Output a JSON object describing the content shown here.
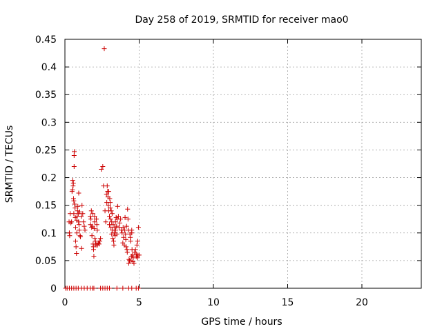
{
  "chart_data": {
    "type": "scatter",
    "title": "Day 258 of 2019, SRMTID for receiver mao0",
    "xlabel": "GPS time / hours",
    "ylabel": "SRMTID / TECUs",
    "xlim": [
      0,
      24
    ],
    "ylim": [
      0,
      0.45
    ],
    "xticks": [
      0,
      5,
      10,
      15,
      20
    ],
    "xtick_labels": [
      "0",
      "5",
      "10",
      "15",
      "20"
    ],
    "yticks": [
      0,
      0.05,
      0.1,
      0.15,
      0.2,
      0.25,
      0.3,
      0.35,
      0.4,
      0.45
    ],
    "ytick_labels": [
      "0",
      "0.05",
      "0.1",
      "0.15",
      "0.2",
      "0.25",
      "0.3",
      "0.35",
      "0.4",
      "0.45"
    ],
    "grid": true,
    "marker": "+",
    "color": "#cc0000",
    "series": [
      {
        "points": [
          [
            0.05,
            0
          ],
          [
            0.15,
            0
          ],
          [
            0.3,
            0
          ],
          [
            0.45,
            0
          ],
          [
            0.6,
            0
          ],
          [
            0.75,
            0
          ],
          [
            0.9,
            0
          ],
          [
            1.1,
            0
          ],
          [
            1.3,
            0
          ],
          [
            1.5,
            0
          ],
          [
            1.7,
            0
          ],
          [
            1.85,
            0
          ],
          [
            1.95,
            0
          ],
          [
            2.4,
            0
          ],
          [
            2.55,
            0
          ],
          [
            2.7,
            0
          ],
          [
            2.85,
            0
          ],
          [
            3.0,
            0
          ],
          [
            3.5,
            0
          ],
          [
            3.9,
            0
          ],
          [
            4.3,
            0
          ],
          [
            4.5,
            0
          ],
          [
            4.8,
            0
          ],
          [
            4.95,
            0
          ],
          [
            0.28,
            0.12
          ],
          [
            0.3,
            0.1
          ],
          [
            0.32,
            0.095
          ],
          [
            0.35,
            0.135
          ],
          [
            0.4,
            0.118
          ],
          [
            0.45,
            0.12
          ],
          [
            0.48,
            0.175
          ],
          [
            0.5,
            0.178
          ],
          [
            0.52,
            0.195
          ],
          [
            0.55,
            0.185
          ],
          [
            0.57,
            0.19
          ],
          [
            0.58,
            0.162
          ],
          [
            0.6,
            0.158
          ],
          [
            0.6,
            0.135
          ],
          [
            0.62,
            0.22
          ],
          [
            0.62,
            0.24
          ],
          [
            0.63,
            0.247
          ],
          [
            0.65,
            0.152
          ],
          [
            0.68,
            0.145
          ],
          [
            0.7,
            0.128
          ],
          [
            0.72,
            0.11
          ],
          [
            0.72,
            0.085
          ],
          [
            0.75,
            0.075
          ],
          [
            0.78,
            0.063
          ],
          [
            0.8,
            0.1
          ],
          [
            0.8,
            0.123
          ],
          [
            0.82,
            0.13
          ],
          [
            0.85,
            0.14
          ],
          [
            0.87,
            0.148
          ],
          [
            0.9,
            0.135
          ],
          [
            0.92,
            0.12
          ],
          [
            0.93,
            0.172
          ],
          [
            0.95,
            0.115
          ],
          [
            0.97,
            0.105
          ],
          [
            1.0,
            0.138
          ],
          [
            1.02,
            0.095
          ],
          [
            1.05,
            0.093
          ],
          [
            1.1,
            0.13
          ],
          [
            1.12,
            0.072
          ],
          [
            1.15,
            0.15
          ],
          [
            1.2,
            0.135
          ],
          [
            1.25,
            0.12
          ],
          [
            1.3,
            0.112
          ],
          [
            1.35,
            0.105
          ],
          [
            1.7,
            0.13
          ],
          [
            1.72,
            0.115
          ],
          [
            1.75,
            0.125
          ],
          [
            1.78,
            0.14
          ],
          [
            1.8,
            0.11
          ],
          [
            1.82,
            0.095
          ],
          [
            1.85,
            0.112
          ],
          [
            1.88,
            0.135
          ],
          [
            1.9,
            0.08
          ],
          [
            1.92,
            0.075
          ],
          [
            1.93,
            0.07
          ],
          [
            1.95,
            0.058
          ],
          [
            1.97,
            0.108
          ],
          [
            2.0,
            0.12
          ],
          [
            2.0,
            0.13
          ],
          [
            2.02,
            0.09
          ],
          [
            2.05,
            0.085
          ],
          [
            2.08,
            0.08
          ],
          [
            2.1,
            0.078
          ],
          [
            2.12,
            0.125
          ],
          [
            2.15,
            0.115
          ],
          [
            2.18,
            0.105
          ],
          [
            2.2,
            0.078
          ],
          [
            2.25,
            0.082
          ],
          [
            2.3,
            0.08
          ],
          [
            2.35,
            0.085
          ],
          [
            2.4,
            0.09
          ],
          [
            2.45,
            0.215
          ],
          [
            2.55,
            0.22
          ],
          [
            2.6,
            0.185
          ],
          [
            2.65,
            0.433
          ],
          [
            2.7,
            0.14
          ],
          [
            2.75,
            0.12
          ],
          [
            2.8,
            0.17
          ],
          [
            2.82,
            0.155
          ],
          [
            2.85,
            0.185
          ],
          [
            2.88,
            0.175
          ],
          [
            2.9,
            0.165
          ],
          [
            2.92,
            0.15
          ],
          [
            2.95,
            0.175
          ],
          [
            2.95,
            0.14
          ],
          [
            3.0,
            0.13
          ],
          [
            3.0,
            0.115
          ],
          [
            3.02,
            0.162
          ],
          [
            3.05,
            0.155
          ],
          [
            3.05,
            0.145
          ],
          [
            3.08,
            0.125
          ],
          [
            3.1,
            0.11
          ],
          [
            3.12,
            0.14
          ],
          [
            3.15,
            0.12
          ],
          [
            3.15,
            0.098
          ],
          [
            3.18,
            0.135
          ],
          [
            3.2,
            0.105
          ],
          [
            3.22,
            0.09
          ],
          [
            3.25,
            0.115
          ],
          [
            3.28,
            0.085
          ],
          [
            3.3,
            0.078
          ],
          [
            3.32,
            0.1
          ],
          [
            3.35,
            0.11
          ],
          [
            3.38,
            0.095
          ],
          [
            3.4,
            0.12
          ],
          [
            3.42,
            0.105
          ],
          [
            3.45,
            0.128
          ],
          [
            3.48,
            0.112
          ],
          [
            3.5,
            0.098
          ],
          [
            3.52,
            0.125
          ],
          [
            3.55,
            0.148
          ],
          [
            3.6,
            0.13
          ],
          [
            3.65,
            0.11
          ],
          [
            3.7,
            0.118
          ],
          [
            3.75,
            0.125
          ],
          [
            3.8,
            0.105
          ],
          [
            3.85,
            0.1
          ],
          [
            3.9,
            0.082
          ],
          [
            3.92,
            0.11
          ],
          [
            3.95,
            0.092
          ],
          [
            4.0,
            0.078
          ],
          [
            4.02,
            0.105
          ],
          [
            4.05,
            0.128
          ],
          [
            4.08,
            0.098
          ],
          [
            4.1,
            0.088
          ],
          [
            4.12,
            0.075
          ],
          [
            4.15,
            0.112
          ],
          [
            4.18,
            0.07
          ],
          [
            4.2,
            0.065
          ],
          [
            4.22,
            0.143
          ],
          [
            4.25,
            0.125
          ],
          [
            4.28,
            0.105
          ],
          [
            4.3,
            0.045
          ],
          [
            4.32,
            0.052
          ],
          [
            4.35,
            0.05
          ],
          [
            4.38,
            0.098
          ],
          [
            4.4,
            0.092
          ],
          [
            4.42,
            0.085
          ],
          [
            4.45,
            0.05
          ],
          [
            4.48,
            0.058
          ],
          [
            4.5,
            0.1
          ],
          [
            4.5,
            0.105
          ],
          [
            4.52,
            0.07
          ],
          [
            4.55,
            0.06
          ],
          [
            4.58,
            0.048
          ],
          [
            4.6,
            0.055
          ],
          [
            4.65,
            0.045
          ],
          [
            4.7,
            0.065
          ],
          [
            4.75,
            0.07
          ],
          [
            4.8,
            0.062
          ],
          [
            4.82,
            0.058
          ],
          [
            4.85,
            0.078
          ],
          [
            4.88,
            0.055
          ],
          [
            4.9,
            0.085
          ],
          [
            4.92,
            0.06
          ],
          [
            4.95,
            0.11
          ],
          [
            5.0,
            0.06
          ]
        ]
      }
    ]
  }
}
